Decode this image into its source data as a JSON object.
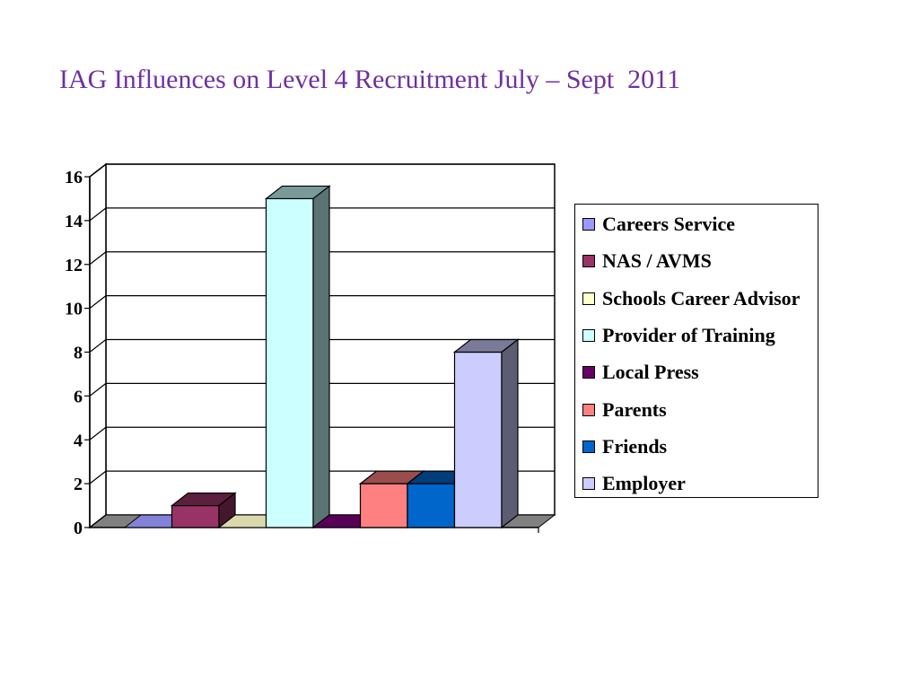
{
  "slide": {
    "title": "IAG Influences on Level 4 Recruitment July – Sept  2011"
  },
  "chart_data": {
    "type": "bar",
    "style": "3d-clustered-column",
    "title": "",
    "xlabel": "",
    "ylabel": "",
    "ylim": [
      0,
      16
    ],
    "yticks": [
      0,
      2,
      4,
      6,
      8,
      10,
      12,
      14,
      16
    ],
    "grid": true,
    "legend_position": "right",
    "categories": [
      ""
    ],
    "series": [
      {
        "name": "Careers Service",
        "values": [
          0
        ],
        "color": "#9999ff"
      },
      {
        "name": "NAS / AVMS",
        "values": [
          1
        ],
        "color": "#993366"
      },
      {
        "name": "Schools Career Advisor",
        "values": [
          0
        ],
        "color": "#ffffcc"
      },
      {
        "name": "Provider of Training",
        "values": [
          15
        ],
        "color": "#ccffff"
      },
      {
        "name": "Local Press",
        "values": [
          0
        ],
        "color": "#660066"
      },
      {
        "name": "Parents",
        "values": [
          2
        ],
        "color": "#ff8080"
      },
      {
        "name": "Friends",
        "values": [
          2
        ],
        "color": "#0066cc"
      },
      {
        "name": "Employer",
        "values": [
          8
        ],
        "color": "#ccccff"
      }
    ]
  }
}
